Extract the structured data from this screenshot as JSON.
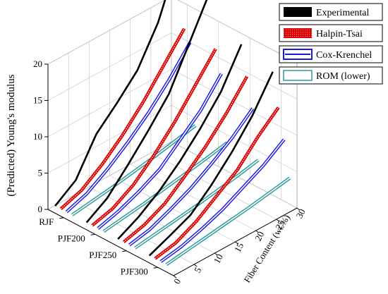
{
  "chart_data": {
    "type": "line",
    "title": "",
    "ylabel": "(Predicted) Young's modulus",
    "xlabel": "Fiber Content (wt.%)",
    "zlim": [
      0,
      20
    ],
    "z_ticks": [
      "0",
      "5",
      "10",
      "15",
      "20"
    ],
    "x_ticks": [
      "0",
      "5",
      "10",
      "15",
      "20",
      "25",
      "30"
    ],
    "categories": [
      "RJF",
      "PJF200",
      "PJF250",
      "PJF300"
    ],
    "grid": true,
    "legend_position": "top-right",
    "fiber_content": [
      0,
      5,
      10,
      15,
      20,
      25,
      30
    ],
    "series": [
      {
        "name": "Experimental",
        "color": "#000000",
        "values": {
          "RJF": [
            1.0,
            3.0,
            7.8,
            10.5,
            13.5,
            18.5,
            26.0
          ],
          "PJF200": [
            1.0,
            2.8,
            5.8,
            9.0,
            12.5,
            18.0,
            23.5
          ],
          "PJF250": [
            1.0,
            2.5,
            4.5,
            7.0,
            10.0,
            13.5,
            18.5
          ],
          "PJF300": [
            1.0,
            2.2,
            3.5,
            6.0,
            9.0,
            12.5,
            17.0
          ]
        }
      },
      {
        "name": "Halpin-Tsai",
        "color": "#e00000",
        "values": {
          "RJF": [
            1.0,
            2.0,
            4.0,
            6.5,
            9.5,
            13.0,
            16.5
          ],
          "PJF200": [
            1.0,
            1.8,
            3.5,
            6.0,
            9.0,
            12.5,
            16.0
          ],
          "PJF250": [
            1.0,
            1.8,
            3.2,
            5.5,
            8.0,
            11.0,
            14.5
          ],
          "PJF300": [
            1.0,
            1.6,
            3.0,
            5.0,
            7.0,
            10.0,
            12.5
          ]
        }
      },
      {
        "name": "Cox-Krenchel",
        "color": "#1a1ae0",
        "values": {
          "RJF": [
            1.0,
            2.0,
            3.8,
            6.0,
            8.5,
            11.5,
            15.0
          ],
          "PJF200": [
            1.0,
            1.8,
            3.0,
            4.5,
            7.0,
            9.5,
            13.0
          ],
          "PJF250": [
            1.0,
            1.6,
            2.8,
            4.2,
            6.0,
            8.0,
            10.5
          ],
          "PJF300": [
            1.0,
            1.5,
            2.4,
            3.5,
            5.0,
            6.5,
            8.5
          ]
        }
      },
      {
        "name": "ROM (lower)",
        "color": "#2a9a9a",
        "values": {
          "RJF": [
            1.0,
            1.4,
            1.8,
            2.3,
            2.8,
            3.4,
            4.0
          ],
          "PJF200": [
            1.0,
            1.4,
            1.8,
            2.3,
            2.8,
            3.3,
            3.9
          ],
          "PJF250": [
            1.0,
            1.4,
            1.8,
            2.2,
            2.7,
            3.2,
            3.8
          ],
          "PJF300": [
            1.0,
            1.4,
            1.8,
            2.2,
            2.6,
            3.1,
            3.6
          ]
        }
      }
    ]
  }
}
